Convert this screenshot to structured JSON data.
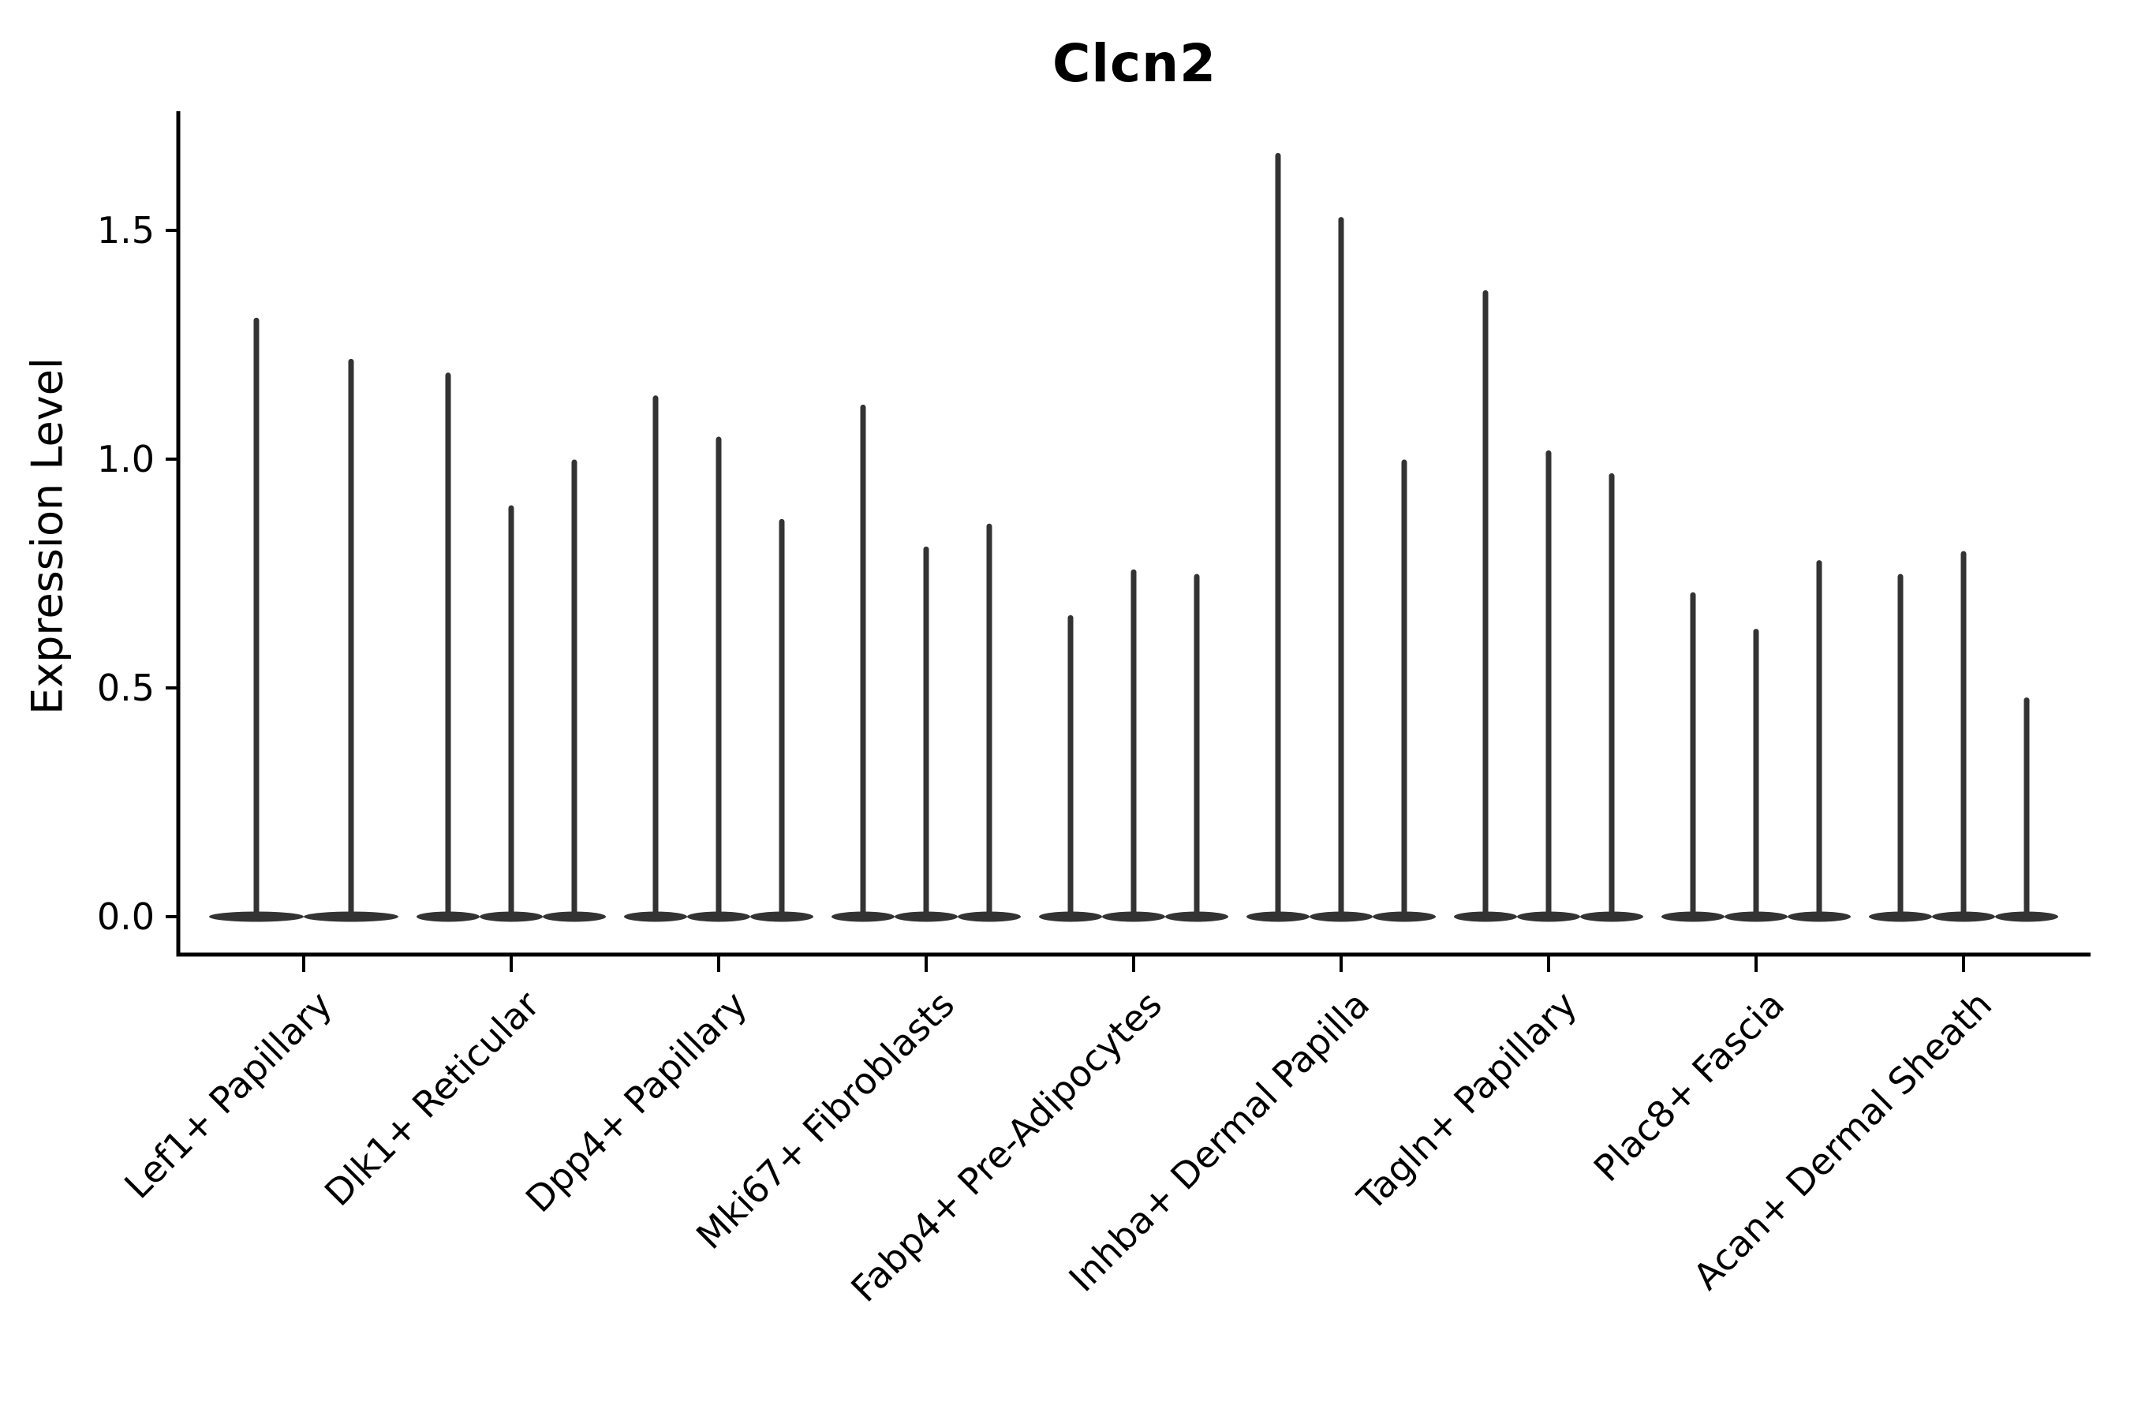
{
  "title": "Clcn2",
  "y_axis_label": "Expression Level",
  "chart_data": {
    "type": "violin",
    "title": "Clcn2",
    "xlabel": "",
    "ylabel": "Expression Level",
    "ylim": [
      -0.08,
      1.76
    ],
    "yticks": [
      0.0,
      0.5,
      1.0,
      1.5
    ],
    "ytick_labels": [
      "0.0",
      "0.5",
      "1.0",
      "1.5"
    ],
    "grid": false,
    "legend": "none",
    "background": "#ffffff",
    "violin_color": "#333333",
    "axis_color": "#000000",
    "shape_note": "each violin has its mass flattened at 0 with a thin spike rising to the listed max expression value",
    "categories": [
      "Lef1+ Papillary",
      "Dlk1+ Reticular",
      "Dpp4+ Papillary",
      "Mki67+ Fibroblasts",
      "Fabp4+ Pre-Adipocytes",
      "Inhba+ Dermal Papilla",
      "Tagln+ Papillary",
      "Plac8+ Fascia",
      "Acan+ Dermal Sheath"
    ],
    "groups": [
      {
        "label": "Lef1+ Papillary",
        "violin_max": [
          1.31,
          1.22
        ]
      },
      {
        "label": "Dlk1+ Reticular",
        "violin_max": [
          1.19,
          0.9,
          1.0
        ]
      },
      {
        "label": "Dpp4+ Papillary",
        "violin_max": [
          1.14,
          1.05,
          0.87
        ]
      },
      {
        "label": "Mki67+ Fibroblasts",
        "violin_max": [
          1.12,
          0.81,
          0.86
        ]
      },
      {
        "label": "Fabp4+ Pre-Adipocytes",
        "violin_max": [
          0.66,
          0.76,
          0.75
        ]
      },
      {
        "label": "Inhba+ Dermal Papilla",
        "violin_max": [
          1.67,
          1.53,
          1.0
        ]
      },
      {
        "label": "Tagln+ Papillary",
        "violin_max": [
          1.37,
          1.02,
          0.97
        ]
      },
      {
        "label": "Plac8+ Fascia",
        "violin_max": [
          0.71,
          0.63,
          0.78
        ]
      },
      {
        "label": "Acan+ Dermal Sheath",
        "violin_max": [
          0.75,
          0.8,
          0.48
        ]
      }
    ]
  }
}
